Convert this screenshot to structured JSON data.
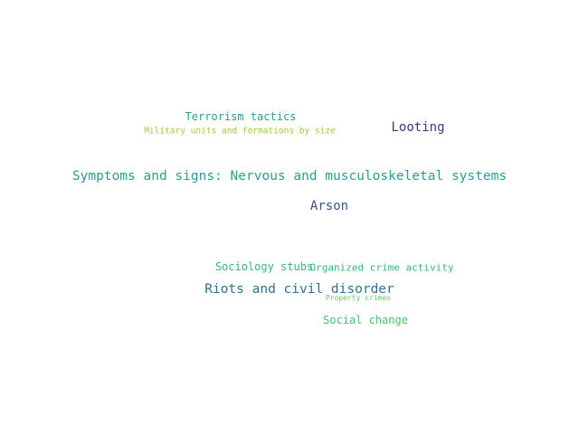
{
  "words": [
    {
      "id": "terrorism-tactics",
      "text": "Terrorism tactics",
      "color": "#2a9d8f"
    },
    {
      "id": "military-units",
      "text": "Military units and formations by size",
      "color": "#9ccd3a"
    },
    {
      "id": "looting",
      "text": "Looting",
      "color": "#46337e"
    },
    {
      "id": "symptoms-signs",
      "text": "Symptoms and signs: Nervous and musculoskeletal systems",
      "color": "#2a9d8f"
    },
    {
      "id": "arson",
      "text": "Arson",
      "color": "#3b528b"
    },
    {
      "id": "sociology-stubs",
      "text": "Sociology stubs",
      "color": "#35b779"
    },
    {
      "id": "organized-crime",
      "text": "Organized crime activity",
      "color": "#35b779"
    },
    {
      "id": "riots-civil-disorder",
      "text": "Riots and civil disorder",
      "color": "#2c728e"
    },
    {
      "id": "property-crimes",
      "text": "Property crimes",
      "color": "#5ec962"
    },
    {
      "id": "social-change",
      "text": "Social change",
      "color": "#4ac16d"
    }
  ]
}
